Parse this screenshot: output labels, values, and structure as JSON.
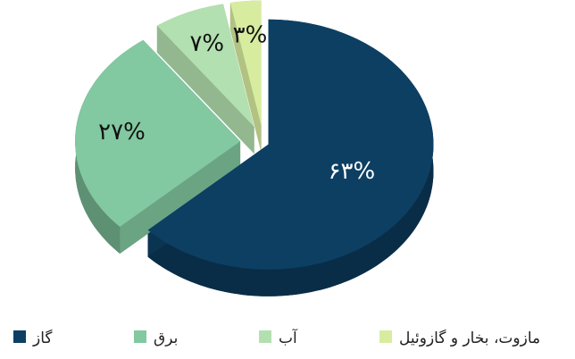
{
  "chart_data": {
    "type": "pie",
    "categories": [
      "گاز",
      "برق",
      "آب",
      "مازوت، بخار و گازوئیل"
    ],
    "values": [
      63,
      27,
      7,
      3
    ],
    "value_labels": [
      "۶۳%",
      "۲۷%",
      "۷%",
      "۳%"
    ],
    "colors": [
      "#0d3f63",
      "#82c8a0",
      "#b3e0b0",
      "#d8eca0"
    ],
    "legend": "bottom"
  }
}
